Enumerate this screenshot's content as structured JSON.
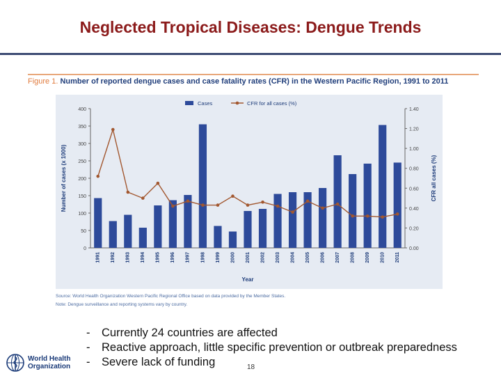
{
  "slide": {
    "title": "Neglected Tropical Diseases: Dengue Trends",
    "page_number": "18"
  },
  "figure": {
    "label": "Figure 1.",
    "caption": "Number of reported dengue cases and case fatality rates (CFR) in the Western Pacific Region, 1991 to 2011",
    "source": "Source: World Health Organization Western Pacific Regional Office based on data provided by the Member States.",
    "note": "Note: Dengue surveillance and reporting systems vary by country."
  },
  "bullets": [
    "Currently 24 countries are affected",
    "Reactive approach, little specific prevention or outbreak preparedness",
    "Severe lack of funding"
  ],
  "logo": {
    "line1": "World Health",
    "line2": "Organization"
  },
  "colors": {
    "title": "#8b1a1a",
    "bar": "#2d4a9a",
    "line": "#a2572f",
    "panel": "#e6ebf3"
  },
  "chart_data": {
    "type": "bar",
    "categories": [
      "1991",
      "1992",
      "1993",
      "1994",
      "1995",
      "1996",
      "1997",
      "1998",
      "1999",
      "2000",
      "2001",
      "2002",
      "2003",
      "2004",
      "2005",
      "2006",
      "2007",
      "2008",
      "2009",
      "2010",
      "2011"
    ],
    "series": [
      {
        "name": "Cases",
        "axis": "left",
        "type": "bar",
        "values": [
          143,
          77,
          95,
          58,
          122,
          137,
          152,
          355,
          63,
          47,
          106,
          112,
          155,
          160,
          160,
          172,
          266,
          212,
          242,
          353,
          245
        ]
      },
      {
        "name": "CFR for all cases (%)",
        "axis": "right",
        "type": "line",
        "values": [
          0.72,
          1.19,
          0.56,
          0.5,
          0.65,
          0.42,
          0.47,
          0.43,
          0.43,
          0.52,
          0.43,
          0.46,
          0.42,
          0.36,
          0.47,
          0.4,
          0.44,
          0.32,
          0.32,
          0.31,
          0.34
        ]
      }
    ],
    "xlabel": "Year",
    "ylabel": "Number of cases (x 1000)",
    "y2label": "CFR all cases (%)",
    "ylim": [
      0,
      400
    ],
    "y2lim": [
      0,
      1.4
    ],
    "yticks": [
      "0",
      "50",
      "100",
      "150",
      "200",
      "250",
      "300",
      "350",
      "400"
    ],
    "y2ticks": [
      "0.00",
      "0.20",
      "0.40",
      "0.60",
      "0.80",
      "1.00",
      "1.20",
      "1.40"
    ],
    "legend": [
      "Cases",
      "CFR for all cases (%)"
    ],
    "legend_position": "top"
  }
}
